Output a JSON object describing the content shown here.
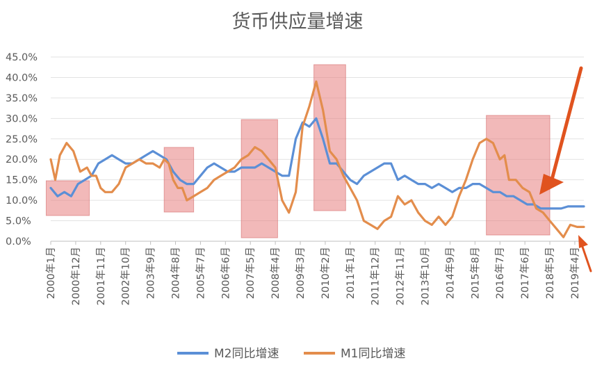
{
  "chart_data": {
    "type": "line",
    "title": "货币供应量增速",
    "y_axis": {
      "min": 0,
      "max": 45,
      "step": 5,
      "tick_labels": [
        "0.0%",
        "5.0%",
        "10.0%",
        "15.0%",
        "20.0%",
        "25.0%",
        "30.0%",
        "35.0%",
        "40.0%",
        "45.0%"
      ]
    },
    "x_tick_labels": [
      "2000年1月",
      "2000年12月",
      "2001年11月",
      "2002年10月",
      "2003年9月",
      "2004年8月",
      "2005年7月",
      "2006年6月",
      "2007年5月",
      "2008年4月",
      "2009年3月",
      "2010年2月",
      "2011年1月",
      "2011年12月",
      "2012年11月",
      "2013年10月",
      "2014年9月",
      "2015年8月",
      "2016年7月",
      "2017年6月",
      "2018年5月",
      "2019年4月"
    ],
    "x_unit": "month index from 2000年1月",
    "grid": "horizontal",
    "legend_position": "bottom",
    "series": [
      {
        "name": "M2同比增速",
        "color": "#5B8FD6",
        "points": [
          [
            0,
            13
          ],
          [
            3,
            11
          ],
          [
            6,
            12
          ],
          [
            9,
            11
          ],
          [
            12,
            14
          ],
          [
            15,
            15
          ],
          [
            18,
            16
          ],
          [
            21,
            19
          ],
          [
            24,
            20
          ],
          [
            27,
            21
          ],
          [
            30,
            20
          ],
          [
            33,
            19
          ],
          [
            36,
            19
          ],
          [
            39,
            20
          ],
          [
            42,
            21
          ],
          [
            45,
            22
          ],
          [
            48,
            21
          ],
          [
            51,
            20
          ],
          [
            54,
            17
          ],
          [
            57,
            15
          ],
          [
            60,
            14
          ],
          [
            63,
            14
          ],
          [
            66,
            16
          ],
          [
            69,
            18
          ],
          [
            72,
            19
          ],
          [
            75,
            18
          ],
          [
            78,
            17
          ],
          [
            81,
            17
          ],
          [
            84,
            18
          ],
          [
            87,
            18
          ],
          [
            90,
            18
          ],
          [
            93,
            19
          ],
          [
            96,
            18
          ],
          [
            99,
            17
          ],
          [
            102,
            16
          ],
          [
            105,
            16
          ],
          [
            108,
            25
          ],
          [
            111,
            29
          ],
          [
            114,
            28
          ],
          [
            117,
            30
          ],
          [
            120,
            25
          ],
          [
            123,
            19
          ],
          [
            126,
            19
          ],
          [
            129,
            17
          ],
          [
            132,
            15
          ],
          [
            135,
            14
          ],
          [
            138,
            16
          ],
          [
            141,
            17
          ],
          [
            144,
            18
          ],
          [
            147,
            19
          ],
          [
            150,
            19
          ],
          [
            153,
            15
          ],
          [
            156,
            16
          ],
          [
            159,
            15
          ],
          [
            162,
            14
          ],
          [
            165,
            14
          ],
          [
            168,
            13
          ],
          [
            171,
            14
          ],
          [
            174,
            13
          ],
          [
            177,
            12
          ],
          [
            180,
            13
          ],
          [
            183,
            13
          ],
          [
            186,
            14
          ],
          [
            189,
            14
          ],
          [
            192,
            13
          ],
          [
            195,
            12
          ],
          [
            198,
            12
          ],
          [
            201,
            11
          ],
          [
            204,
            11
          ],
          [
            207,
            10
          ],
          [
            210,
            9
          ],
          [
            213,
            9
          ],
          [
            216,
            8
          ],
          [
            219,
            8
          ],
          [
            222,
            8
          ],
          [
            225,
            8
          ],
          [
            228,
            8.5
          ],
          [
            231,
            8.5
          ],
          [
            235,
            8.5
          ]
        ]
      },
      {
        "name": "M1同比增速",
        "color": "#E38D4C",
        "points": [
          [
            0,
            20
          ],
          [
            2,
            15
          ],
          [
            4,
            21
          ],
          [
            7,
            24
          ],
          [
            10,
            22
          ],
          [
            13,
            17
          ],
          [
            16,
            18
          ],
          [
            18,
            16
          ],
          [
            20,
            16
          ],
          [
            22,
            13
          ],
          [
            24,
            12
          ],
          [
            27,
            12
          ],
          [
            30,
            14
          ],
          [
            33,
            18
          ],
          [
            36,
            19
          ],
          [
            39,
            20
          ],
          [
            42,
            19
          ],
          [
            45,
            19
          ],
          [
            48,
            18
          ],
          [
            50,
            20
          ],
          [
            52,
            19
          ],
          [
            54,
            15
          ],
          [
            56,
            13
          ],
          [
            58,
            13
          ],
          [
            60,
            10
          ],
          [
            63,
            11
          ],
          [
            66,
            12
          ],
          [
            69,
            13
          ],
          [
            72,
            15
          ],
          [
            75,
            16
          ],
          [
            78,
            17
          ],
          [
            81,
            18
          ],
          [
            84,
            20
          ],
          [
            87,
            21
          ],
          [
            90,
            23
          ],
          [
            93,
            22
          ],
          [
            96,
            20
          ],
          [
            99,
            18
          ],
          [
            102,
            10
          ],
          [
            105,
            7
          ],
          [
            108,
            12
          ],
          [
            111,
            28
          ],
          [
            114,
            33
          ],
          [
            117,
            39
          ],
          [
            120,
            32
          ],
          [
            123,
            22
          ],
          [
            126,
            20
          ],
          [
            129,
            16
          ],
          [
            132,
            13
          ],
          [
            135,
            10
          ],
          [
            138,
            5
          ],
          [
            141,
            4
          ],
          [
            144,
            3
          ],
          [
            147,
            5
          ],
          [
            150,
            6
          ],
          [
            153,
            11
          ],
          [
            156,
            9
          ],
          [
            159,
            10
          ],
          [
            162,
            7
          ],
          [
            165,
            5
          ],
          [
            168,
            4
          ],
          [
            171,
            6
          ],
          [
            174,
            4
          ],
          [
            177,
            6
          ],
          [
            180,
            11
          ],
          [
            183,
            15
          ],
          [
            186,
            20
          ],
          [
            189,
            24
          ],
          [
            192,
            25
          ],
          [
            195,
            24
          ],
          [
            198,
            20
          ],
          [
            200,
            21
          ],
          [
            202,
            15
          ],
          [
            205,
            15
          ],
          [
            208,
            13
          ],
          [
            211,
            12
          ],
          [
            214,
            8
          ],
          [
            217,
            7
          ],
          [
            220,
            5
          ],
          [
            223,
            3
          ],
          [
            226,
            1
          ],
          [
            229,
            4
          ],
          [
            232,
            3.5
          ],
          [
            235,
            3.5
          ]
        ]
      }
    ],
    "highlight_regions": [
      [
        -2,
        17
      ],
      [
        50,
        63
      ],
      [
        84,
        100
      ],
      [
        116,
        130
      ],
      [
        192,
        220
      ]
    ],
    "highlight_color": "#E88080",
    "arrow_color": "#E0531F"
  }
}
